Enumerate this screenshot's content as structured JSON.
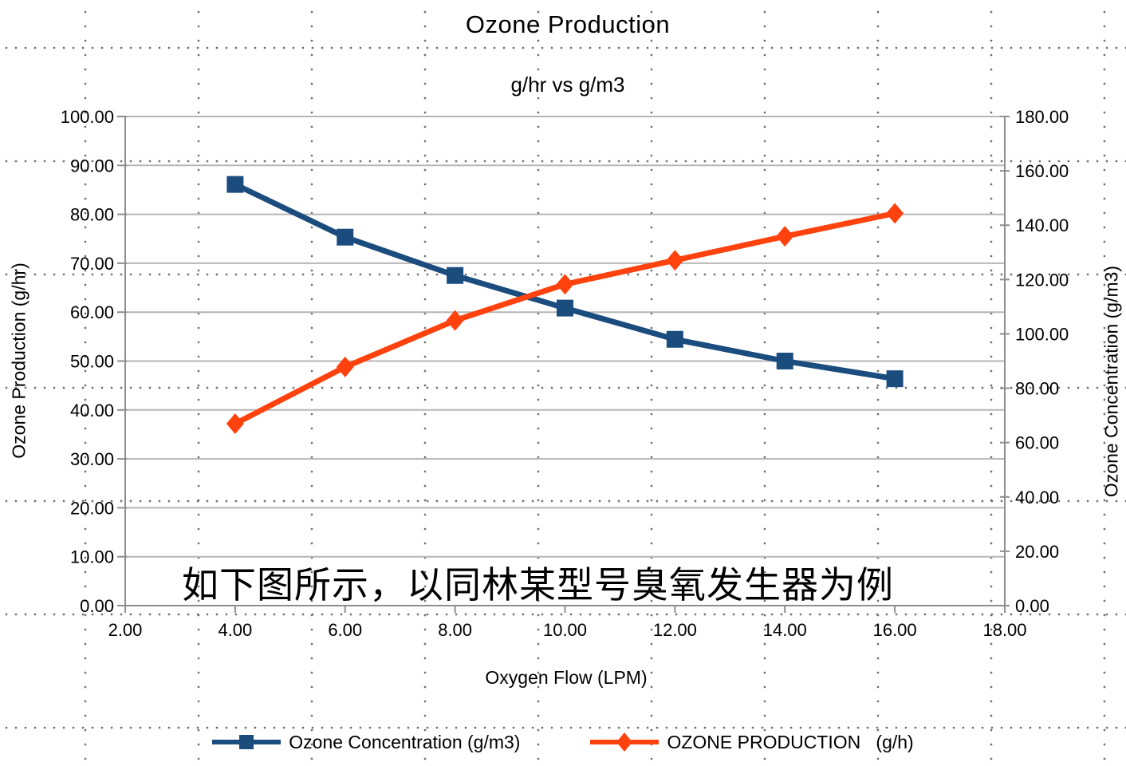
{
  "overlay_caption": "如下图所示，以同林某型号臭氧发生器为例",
  "legend": {
    "items": [
      {
        "label": "Ozone Concentration (g/m3)",
        "marker": "square",
        "color": "#1b4c7e"
      },
      {
        "label": "OZONE PRODUCTION   (g/h)",
        "marker": "diamond",
        "color": "#ff420e"
      }
    ]
  },
  "colors": {
    "series_blue": "#1b4c7e",
    "series_orange": "#ff420e",
    "gridline": "#b6b6b6",
    "axis_line": "#8e8e8e",
    "background_dots": "#6f6f6f",
    "text": "#000000"
  },
  "chart_data": {
    "type": "line",
    "title": "Ozone Production",
    "subtitle": "g/hr vs g/m3",
    "xlabel": "Oxygen Flow (LPM)",
    "ylabel_left": "Ozone Production (g/hr)",
    "ylabel_right": "Ozone Concentration (g/m3)",
    "grid": "horizontal-only",
    "legend_position": "bottom",
    "x": [
      4,
      6,
      8,
      10,
      12,
      14,
      16
    ],
    "x_axis": {
      "min": 2,
      "max": 18,
      "step": 2,
      "decimals": 2
    },
    "y_left_axis": {
      "min": 0,
      "max": 100,
      "step": 10,
      "decimals": 2
    },
    "y_right_axis": {
      "min": 0,
      "max": 180,
      "step": 20,
      "decimals": 2
    },
    "series": [
      {
        "name": "Ozone Concentration (g/m3)",
        "axis": "right",
        "marker": "square",
        "color": "#1b4c7e",
        "values": [
          155,
          135.6,
          121.5,
          109.5,
          98,
          90,
          83.5
        ]
      },
      {
        "name": "OZONE PRODUCTION (g/h)",
        "axis": "left",
        "marker": "diamond",
        "color": "#ff420e",
        "values": [
          37.2,
          48.8,
          58.3,
          65.7,
          70.6,
          75.5,
          80.2
        ]
      }
    ]
  }
}
